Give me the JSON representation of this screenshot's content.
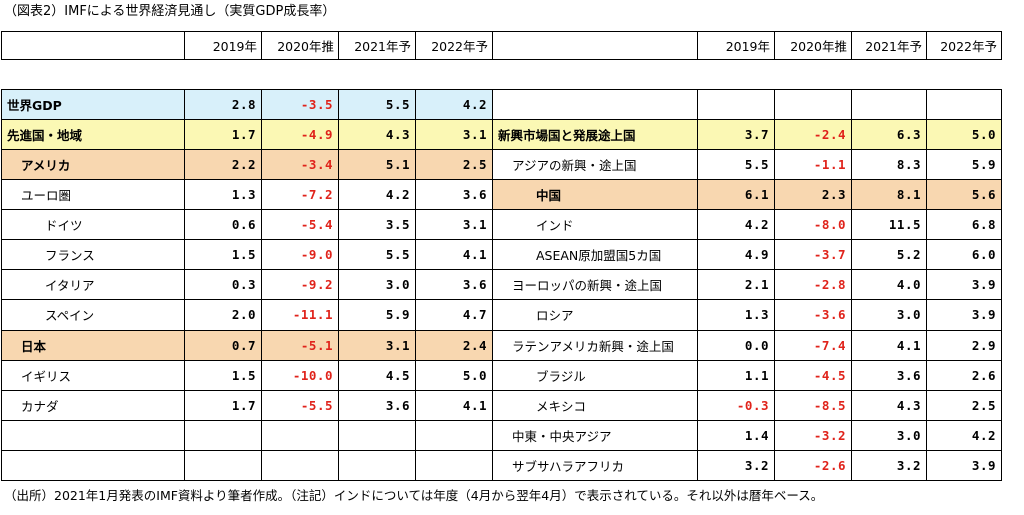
{
  "title": "（図表2）IMFによる世界経済見通し（実質GDP成長率）",
  "headers": [
    "2019年",
    "2020年推",
    "2021年予",
    "2022年予"
  ],
  "colors": {
    "world": "#d8f0fa",
    "advanced": "#fbf8b4",
    "highlight": "#f8d7b0",
    "negative": "#e0231b"
  },
  "left_rows": [
    {
      "label": "世界GDP",
      "values": [
        "2.8",
        "-3.5",
        "5.5",
        "4.2"
      ],
      "indent": 0,
      "bold": true,
      "bg": "blue"
    },
    {
      "label": "先進国・地域",
      "values": [
        "1.7",
        "-4.9",
        "4.3",
        "3.1"
      ],
      "indent": 0,
      "bold": true,
      "bg": "yellow"
    },
    {
      "label": "アメリカ",
      "values": [
        "2.2",
        "-3.4",
        "5.1",
        "2.5"
      ],
      "indent": 1,
      "bold": true,
      "bg": "orange"
    },
    {
      "label": "ユーロ圏",
      "values": [
        "1.3",
        "-7.2",
        "4.2",
        "3.6"
      ],
      "indent": 1,
      "bold": false,
      "bg": ""
    },
    {
      "label": "ドイツ",
      "values": [
        "0.6",
        "-5.4",
        "3.5",
        "3.1"
      ],
      "indent": 3,
      "bold": false,
      "bg": ""
    },
    {
      "label": "フランス",
      "values": [
        "1.5",
        "-9.0",
        "5.5",
        "4.1"
      ],
      "indent": 3,
      "bold": false,
      "bg": ""
    },
    {
      "label": "イタリア",
      "values": [
        "0.3",
        "-9.2",
        "3.0",
        "3.6"
      ],
      "indent": 3,
      "bold": false,
      "bg": ""
    },
    {
      "label": "スペイン",
      "values": [
        "2.0",
        "-11.1",
        "5.9",
        "4.7"
      ],
      "indent": 3,
      "bold": false,
      "bg": ""
    },
    {
      "label": "日本",
      "values": [
        "0.7",
        "-5.1",
        "3.1",
        "2.4"
      ],
      "indent": 1,
      "bold": true,
      "bg": "orange"
    },
    {
      "label": "イギリス",
      "values": [
        "1.5",
        "-10.0",
        "4.5",
        "5.0"
      ],
      "indent": 1,
      "bold": false,
      "bg": ""
    },
    {
      "label": "カナダ",
      "values": [
        "1.7",
        "-5.5",
        "3.6",
        "4.1"
      ],
      "indent": 1,
      "bold": false,
      "bg": ""
    },
    {
      "label": "",
      "values": [
        "",
        "",
        "",
        ""
      ],
      "indent": 0,
      "bold": false,
      "bg": ""
    },
    {
      "label": "",
      "values": [
        "",
        "",
        "",
        ""
      ],
      "indent": 0,
      "bold": false,
      "bg": ""
    }
  ],
  "right_rows": [
    {
      "label": "",
      "values": [
        "",
        "",
        "",
        ""
      ],
      "indent": 0,
      "bold": false,
      "bg": ""
    },
    {
      "label": "新興市場国と発展途上国",
      "values": [
        "3.7",
        "-2.4",
        "6.3",
        "5.0"
      ],
      "indent": 0,
      "bold": true,
      "bg": "yellow"
    },
    {
      "label": "アジアの新興・途上国",
      "values": [
        "5.5",
        "-1.1",
        "8.3",
        "5.9"
      ],
      "indent": 1,
      "bold": false,
      "bg": ""
    },
    {
      "label": "中国",
      "values": [
        "6.1",
        "2.3",
        "8.1",
        "5.6"
      ],
      "indent": 3,
      "bold": true,
      "bg": "orange"
    },
    {
      "label": "インド",
      "values": [
        "4.2",
        "-8.0",
        "11.5",
        "6.8"
      ],
      "indent": 3,
      "bold": false,
      "bg": ""
    },
    {
      "label": "ASEAN原加盟国5カ国",
      "values": [
        "4.9",
        "-3.7",
        "5.2",
        "6.0"
      ],
      "indent": 3,
      "bold": false,
      "bg": ""
    },
    {
      "label": "ヨーロッパの新興・途上国",
      "values": [
        "2.1",
        "-2.8",
        "4.0",
        "3.9"
      ],
      "indent": 1,
      "bold": false,
      "bg": ""
    },
    {
      "label": "ロシア",
      "values": [
        "1.3",
        "-3.6",
        "3.0",
        "3.9"
      ],
      "indent": 3,
      "bold": false,
      "bg": ""
    },
    {
      "label": "ラテンアメリカ新興・途上国",
      "values": [
        "0.0",
        "-7.4",
        "4.1",
        "2.9"
      ],
      "indent": 1,
      "bold": false,
      "bg": ""
    },
    {
      "label": "ブラジル",
      "values": [
        "1.1",
        "-4.5",
        "3.6",
        "2.6"
      ],
      "indent": 3,
      "bold": false,
      "bg": ""
    },
    {
      "label": "メキシコ",
      "values": [
        "-0.3",
        "-8.5",
        "4.3",
        "2.5"
      ],
      "indent": 3,
      "bold": false,
      "bg": ""
    },
    {
      "label": "中東・中央アジア",
      "values": [
        "1.4",
        "-3.2",
        "3.0",
        "4.2"
      ],
      "indent": 1,
      "bold": false,
      "bg": ""
    },
    {
      "label": "サブサハラアフリカ",
      "values": [
        "3.2",
        "-2.6",
        "3.2",
        "3.9"
      ],
      "indent": 1,
      "bold": false,
      "bg": ""
    }
  ],
  "footnote": "（出所）2021年1月発表のIMF資料より筆者作成。（注記）インドについては年度（4月から翌年4月）で表示されている。それ以外は暦年ベース。"
}
